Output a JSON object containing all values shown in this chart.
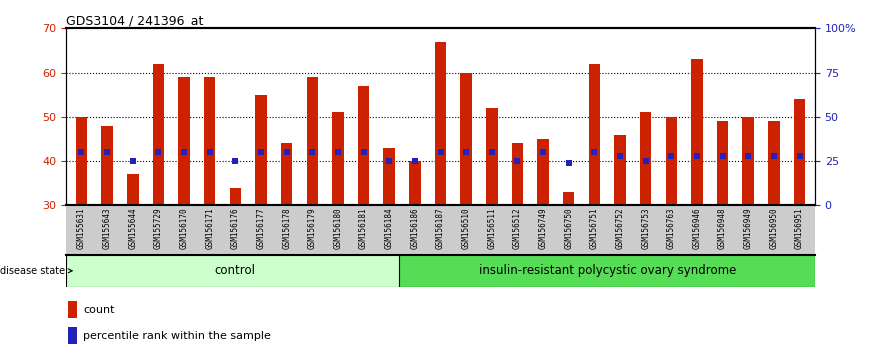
{
  "title": "GDS3104 / 241396_at",
  "samples": [
    "GSM155631",
    "GSM155643",
    "GSM155644",
    "GSM155729",
    "GSM156170",
    "GSM156171",
    "GSM156176",
    "GSM156177",
    "GSM156178",
    "GSM156179",
    "GSM156180",
    "GSM156181",
    "GSM156184",
    "GSM156186",
    "GSM156187",
    "GSM156510",
    "GSM156511",
    "GSM156512",
    "GSM156749",
    "GSM156750",
    "GSM156751",
    "GSM156752",
    "GSM156753",
    "GSM156763",
    "GSM156946",
    "GSM156948",
    "GSM156949",
    "GSM156950",
    "GSM156951"
  ],
  "counts": [
    50,
    48,
    37,
    62,
    59,
    59,
    34,
    55,
    44,
    59,
    51,
    57,
    43,
    40,
    67,
    60,
    52,
    44,
    45,
    33,
    62,
    46,
    51,
    50,
    63,
    49,
    50,
    49,
    54
  ],
  "percentiles_pct": [
    30,
    30,
    25,
    30,
    30,
    30,
    25,
    30,
    30,
    30,
    30,
    30,
    25,
    25,
    30,
    30,
    30,
    25,
    30,
    24,
    30,
    28,
    25,
    28,
    28,
    28,
    28,
    28,
    28
  ],
  "control_count": 13,
  "disease_count": 16,
  "ylim_left": [
    30,
    70
  ],
  "ylim_right": [
    0,
    100
  ],
  "yticks_left": [
    30,
    40,
    50,
    60,
    70
  ],
  "yticks_right": [
    0,
    25,
    50,
    75,
    100
  ],
  "yticklabels_right": [
    "0",
    "25",
    "50",
    "75",
    "100%"
  ],
  "bar_color": "#cc2200",
  "dot_color": "#2222bb",
  "control_label": "control",
  "disease_label": "insulin-resistant polycystic ovary syndrome",
  "control_bg": "#ccffcc",
  "disease_bg": "#55dd55",
  "legend_count_label": "count",
  "legend_pct_label": "percentile rank within the sample",
  "bar_width": 0.45
}
